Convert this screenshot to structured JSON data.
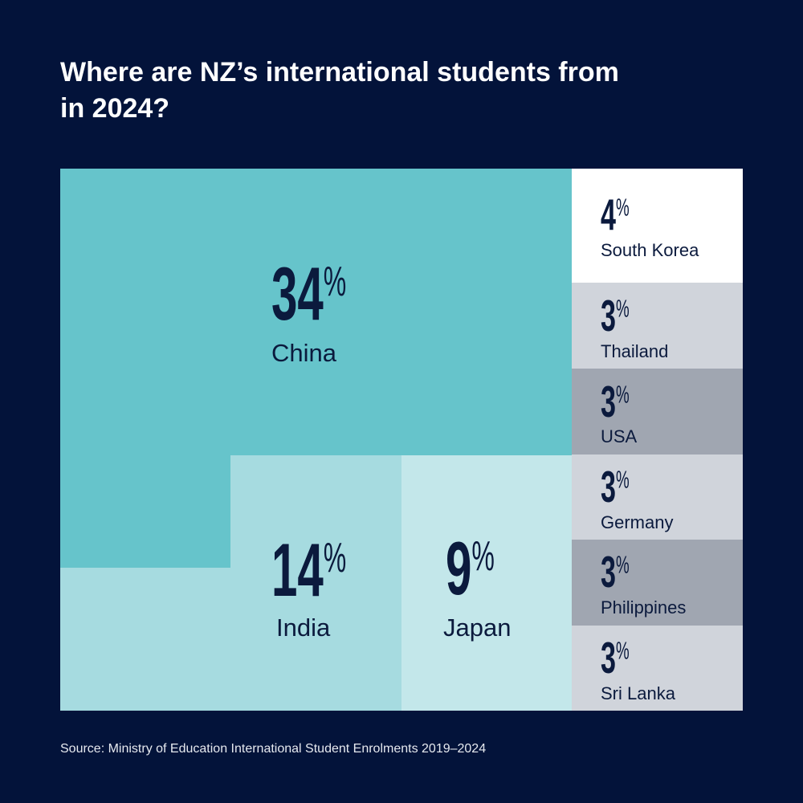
{
  "chart_data": {
    "type": "treemap",
    "title": "Where are NZ’s international students from in 2024?",
    "categories": [
      "China",
      "India",
      "Japan",
      "South Korea",
      "Thailand",
      "USA",
      "Germany",
      "Philippines",
      "Sri Lanka"
    ],
    "values": [
      34,
      14,
      9,
      4,
      3,
      3,
      3,
      3,
      3
    ],
    "value_labels": [
      "34%",
      "14%",
      "9%",
      "4%",
      "3%",
      "3%",
      "3%",
      "3%",
      "3%"
    ],
    "colors": [
      "#66c4cb",
      "#a6dbe0",
      "#c3e7ea",
      "#ffffff",
      "#d0d4db",
      "#a0a6b1",
      "#d0d4db",
      "#a0a6b1",
      "#d0d4db"
    ],
    "source": "Source: Ministry of Education International Student Enrolments 2019–2024"
  }
}
